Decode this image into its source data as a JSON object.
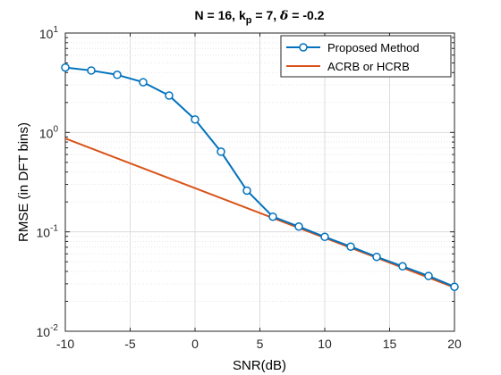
{
  "chart_data": {
    "type": "line",
    "title": {
      "prefix": "N = 16, k",
      "subscript": "p",
      "middle": " = 7, ",
      "symbol": "δ",
      "suffix": " = -0.2"
    },
    "xlabel": "SNR(dB)",
    "ylabel": "RMSE (in DFT bins)",
    "xlim": [
      -10,
      20
    ],
    "ylim": [
      0.01,
      10
    ],
    "yscale": "log",
    "grid": true,
    "xticks": [
      -10,
      -5,
      0,
      5,
      10,
      15,
      20
    ],
    "xtick_labels": [
      "-10",
      "-5",
      "0",
      "5",
      "10",
      "15",
      "20"
    ],
    "yticks": [
      {
        "value": 10,
        "base": "10",
        "exp": "1"
      },
      {
        "value": 1,
        "base": "10",
        "exp": "0"
      },
      {
        "value": 0.1,
        "base": "10",
        "exp": "-1"
      },
      {
        "value": 0.01,
        "base": "10",
        "exp": "-2"
      }
    ],
    "legend_position": "top-right",
    "series": [
      {
        "name": "Proposed Method",
        "color": "#0072BD",
        "marker": "circle",
        "x": [
          -10,
          -8,
          -6,
          -4,
          -2,
          0,
          2,
          4,
          6,
          8,
          10,
          12,
          14,
          16,
          18,
          20
        ],
        "y": [
          4.5,
          4.2,
          3.8,
          3.2,
          2.35,
          1.35,
          0.64,
          0.26,
          0.142,
          0.113,
          0.089,
          0.071,
          0.056,
          0.045,
          0.036,
          0.028
        ]
      },
      {
        "name": "ACRB or HCRB",
        "color": "#D95319",
        "marker": "none",
        "x": [
          -10,
          20
        ],
        "y": [
          0.87,
          0.0275
        ]
      }
    ]
  }
}
